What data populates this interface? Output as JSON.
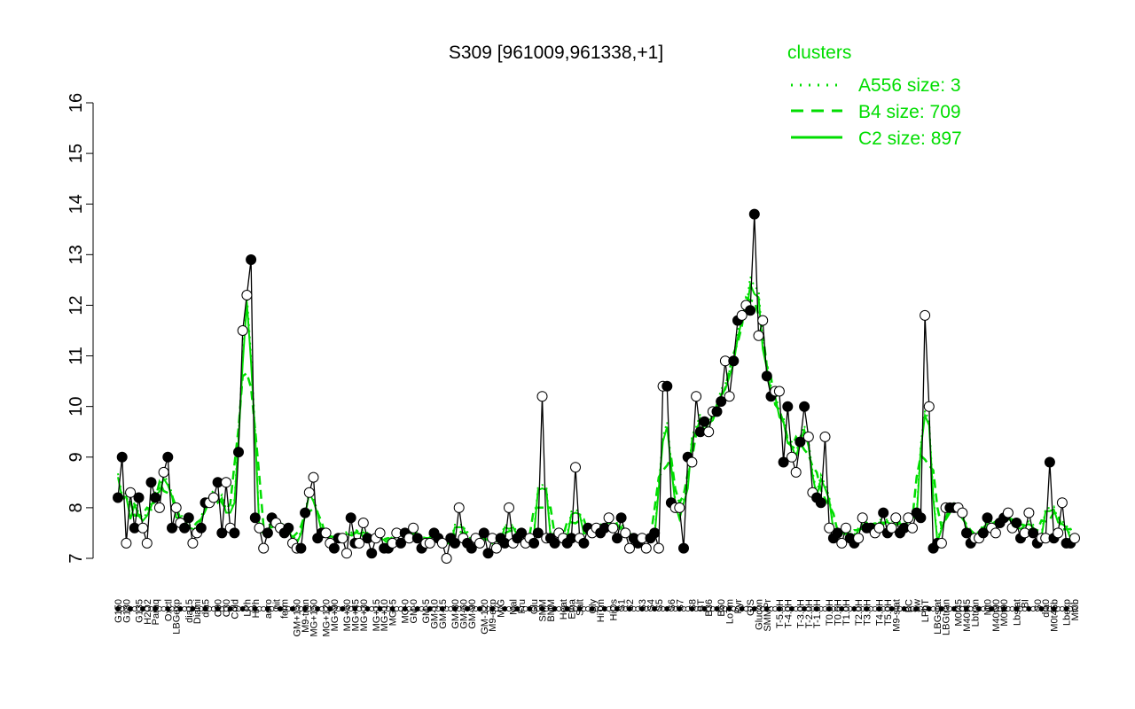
{
  "chart_data": {
    "type": "line",
    "title": "S309 [961009,961338,+1]",
    "xlabel": "",
    "ylabel": "",
    "ylim": [
      7,
      16
    ],
    "yticks": [
      7,
      8,
      9,
      10,
      11,
      12,
      13,
      14,
      15,
      16
    ],
    "xticks_every_other": [
      "G150",
      "G180",
      "G135",
      "H2O2",
      "Paraq",
      "Oxctl",
      "LBGexp",
      "dia15",
      "Diami",
      "dia5",
      "C90",
      "C30",
      "Cold",
      "LPh",
      "HPh",
      "aero",
      "nit",
      "ferm",
      "GM+150",
      "M9-tran",
      "MG+150",
      "MG+120",
      "MG+90",
      "MG+60",
      "MG+45",
      "MG+30",
      "MG+15",
      "MG+10",
      "MG+5",
      "MG-0",
      "GM-0",
      "GM-5",
      "GM-10",
      "GM-15",
      "GM-30",
      "GM-60",
      "GM-90",
      "GM-120",
      "M9-exp",
      "M/G",
      "Mal",
      "Fru",
      "Glu",
      "SMM",
      "BMM",
      "Heat",
      "Etha",
      "Salt",
      "Gly",
      "HiTm",
      "HiOs",
      "S1",
      "S2",
      "S3",
      "S4",
      "S5",
      "S6",
      "S7",
      "S8",
      "BT",
      "B36",
      "B60",
      "LoTm",
      "Pyr",
      "G/S",
      "Glucon",
      "SMMPr",
      "T-5.0H",
      "T-4.0H",
      "T-3.0H",
      "T-2.0H",
      "T-1.0H",
      "T0.0H",
      "T0.5H",
      "T1.0H",
      "T2.0H",
      "T3.0H",
      "T4.0H",
      "T5.0H",
      "M9-stat",
      "BC",
      "Sw",
      "LPhT",
      "LBGstat",
      "LBGtran",
      "M0t45",
      "M40t45",
      "Lbtran",
      "Mt0",
      "M40t90",
      "M0t90",
      "Lbstat",
      "BI",
      "S0",
      "dia0",
      "M0t45b",
      "Lbexp",
      "Mt0b"
    ],
    "series": [
      {
        "name": "S309",
        "color": "#000000",
        "values": [
          8.2,
          9.0,
          7.3,
          8.3,
          7.6,
          8.2,
          7.6,
          7.3,
          8.5,
          8.2,
          8.0,
          8.7,
          9.0,
          7.6,
          8.0,
          7.7,
          7.6,
          7.8,
          7.3,
          7.5,
          7.6,
          8.1,
          8.1,
          8.2,
          8.5,
          7.5,
          8.5,
          7.6,
          7.5,
          9.1,
          11.5,
          12.2,
          12.9,
          7.8,
          7.6,
          7.2,
          7.5,
          7.8,
          7.7,
          7.6,
          7.5,
          7.6,
          7.3,
          7.2,
          7.2,
          7.9,
          8.3,
          8.6,
          7.4,
          7.5,
          7.5,
          7.3,
          7.2,
          7.4,
          7.4,
          7.1,
          7.8,
          7.3,
          7.3,
          7.7,
          7.4,
          7.1,
          7.4,
          7.5,
          7.2,
          7.2,
          7.3,
          7.5,
          7.3,
          7.5,
          7.4,
          7.6,
          7.4,
          7.2,
          7.3,
          7.3,
          7.5,
          7.4,
          7.3,
          7.0,
          7.4,
          7.3,
          8.0,
          7.4,
          7.3,
          7.2,
          7.4,
          7.3,
          7.5,
          7.1,
          7.4,
          7.2,
          7.4,
          7.3,
          8.0,
          7.3,
          7.4,
          7.5,
          7.3,
          7.4,
          7.3,
          7.5,
          10.2,
          7.4,
          7.4,
          7.3,
          7.5,
          7.4,
          7.3,
          7.4,
          8.8,
          7.4,
          7.3,
          7.6,
          7.5,
          7.6,
          7.5,
          7.6,
          7.8,
          7.6,
          7.4,
          7.8,
          7.5,
          7.2,
          7.4,
          7.3,
          7.4,
          7.2,
          7.4,
          7.5,
          7.2,
          10.4,
          10.4,
          8.1,
          8.0,
          8.0,
          7.2,
          9.0,
          8.9,
          10.2,
          9.5,
          9.7,
          9.5,
          9.9,
          9.9,
          10.1,
          10.9,
          10.2,
          10.9,
          11.7,
          11.8,
          12.0,
          11.9,
          13.8,
          11.4,
          11.7,
          10.6,
          10.2,
          10.3,
          10.3,
          8.9,
          10.0,
          9.0,
          8.7,
          9.3,
          10.0,
          9.4,
          8.3,
          8.2,
          8.1,
          9.4,
          7.6,
          7.4,
          7.5,
          7.3,
          7.6,
          7.4,
          7.3,
          7.4,
          7.8,
          7.6,
          7.6,
          7.5,
          7.6,
          7.9,
          7.5,
          7.6,
          7.8,
          7.5,
          7.6,
          7.8,
          7.6,
          7.9,
          7.8,
          11.8,
          10.0,
          7.2,
          7.3,
          7.3,
          8.0,
          8.0,
          8.0,
          8.0,
          7.9,
          7.5,
          7.3,
          7.4,
          7.4,
          7.5,
          7.8,
          7.6,
          7.5,
          7.7,
          7.8,
          7.9,
          7.6,
          7.7,
          7.4,
          7.5,
          7.9,
          7.5,
          7.3,
          7.4,
          7.4,
          8.9,
          7.4,
          7.5,
          8.1,
          7.3,
          7.3,
          7.4
        ]
      }
    ],
    "clusters_legend": {
      "title": "clusters",
      "entries": [
        {
          "label": "A556 size: 3",
          "style": "dotted"
        },
        {
          "label": "B4 size: 709",
          "style": "dashed"
        },
        {
          "label": "C2 size: 897",
          "style": "solid"
        }
      ],
      "color": "#00dd00"
    }
  }
}
